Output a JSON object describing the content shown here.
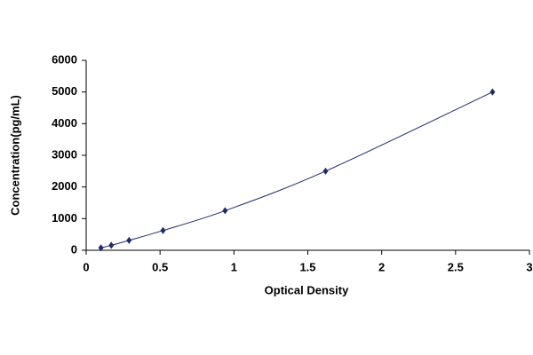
{
  "chart_data": {
    "type": "scatter",
    "x_label": "Optical Density",
    "y_label": "Concentration(pg/mL)",
    "x": [
      0.1,
      0.17,
      0.29,
      0.52,
      0.94,
      1.62,
      2.75
    ],
    "series": [
      {
        "color": "#1f2a6b",
        "values": [
          78,
          156,
          312,
          625,
          1250,
          2500,
          5000
        ]
      }
    ],
    "line": "smooth",
    "xlim": [
      0,
      3
    ],
    "xticks": [
      0,
      0.5,
      1,
      1.5,
      2,
      2.5,
      3
    ],
    "ylim": [
      0,
      6000
    ],
    "yticks": [
      0,
      1000,
      2000,
      3000,
      4000,
      5000,
      6000
    ],
    "grid": false
  }
}
